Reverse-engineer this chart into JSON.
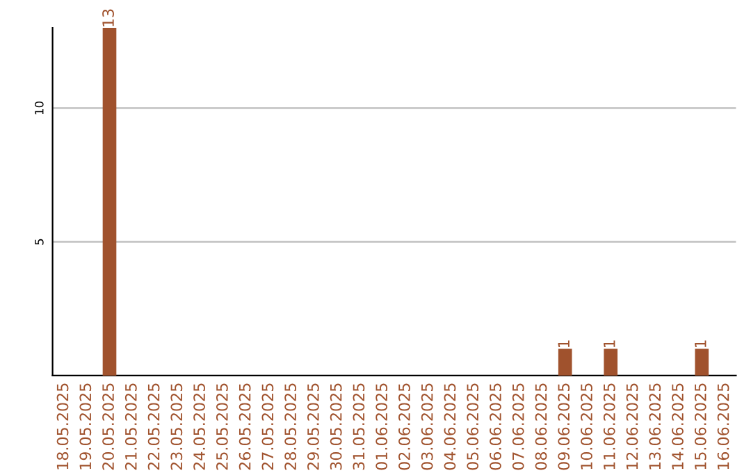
{
  "chart_data": {
    "type": "bar",
    "categories": [
      "18.05.2025",
      "19.05.2025",
      "20.05.2025",
      "21.05.2025",
      "22.05.2025",
      "23.05.2025",
      "24.05.2025",
      "25.05.2025",
      "26.05.2025",
      "27.05.2025",
      "28.05.2025",
      "29.05.2025",
      "30.05.2025",
      "31.05.2025",
      "01.06.2025",
      "02.06.2025",
      "03.06.2025",
      "04.06.2025",
      "05.06.2025",
      "06.06.2025",
      "07.06.2025",
      "08.06.2025",
      "09.06.2025",
      "10.06.2025",
      "11.06.2025",
      "12.06.2025",
      "13.06.2025",
      "14.06.2025",
      "15.06.2025",
      "16.06.2025"
    ],
    "values": [
      0,
      0,
      13,
      0,
      0,
      0,
      0,
      0,
      0,
      0,
      0,
      0,
      0,
      0,
      0,
      0,
      0,
      0,
      0,
      0,
      0,
      0,
      1,
      0,
      1,
      0,
      0,
      0,
      1,
      0
    ],
    "value_labels": [
      null,
      null,
      "13",
      null,
      null,
      null,
      null,
      null,
      null,
      null,
      null,
      null,
      null,
      null,
      null,
      null,
      null,
      null,
      null,
      null,
      null,
      null,
      "1",
      null,
      "1",
      null,
      null,
      null,
      "1",
      null
    ],
    "color": "#a0522d",
    "ylim": [
      0,
      13
    ],
    "yticks": [
      5,
      10
    ],
    "grid": "y"
  }
}
